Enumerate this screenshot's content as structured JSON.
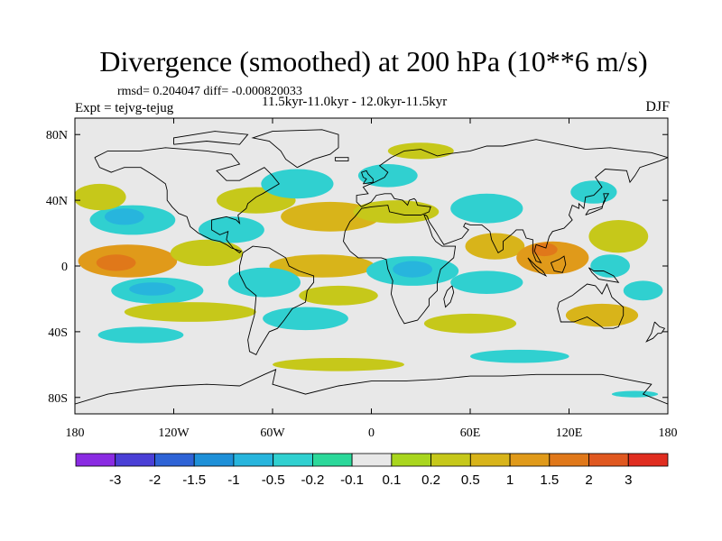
{
  "chart_data": {
    "type": "heatmap",
    "title": "Divergence (smoothed) at 200 hPa (10**6 m/s)",
    "stats_text": "rmsd= 0.204047 diff= -0.000820033",
    "subtitle_left": "Expt = tejvg-tejug",
    "subtitle_center": "11.5kyr-11.0kyr - 12.0kyr-11.5kyr",
    "subtitle_right": "DJF",
    "x_ticks": [
      {
        "value": -180,
        "label": "180"
      },
      {
        "value": -120,
        "label": "120W"
      },
      {
        "value": -60,
        "label": "60W"
      },
      {
        "value": 0,
        "label": "0"
      },
      {
        "value": 60,
        "label": "60E"
      },
      {
        "value": 120,
        "label": "120E"
      },
      {
        "value": 180,
        "label": "180"
      }
    ],
    "y_ticks": [
      {
        "value": 80,
        "label": "80N"
      },
      {
        "value": 40,
        "label": "40N"
      },
      {
        "value": 0,
        "label": "0"
      },
      {
        "value": -40,
        "label": "40S"
      },
      {
        "value": -80,
        "label": "80S"
      }
    ],
    "xlim": [
      -180,
      180
    ],
    "ylim": [
      -90,
      90
    ],
    "colorbar": {
      "colors": [
        "#8a2be2",
        "#4a3fd6",
        "#2e63d6",
        "#1e90d8",
        "#27b5dd",
        "#30d0d0",
        "#2bd89a",
        "#e8e8e8",
        "#a9d61e",
        "#c6c81a",
        "#d8b41a",
        "#e09a1a",
        "#e0781a",
        "#e05820",
        "#e02d20"
      ],
      "labels": [
        "-3",
        "-2",
        "-1.5",
        "-1",
        "-0.5",
        "-0.2",
        "-0.1",
        "0.1",
        "0.2",
        "0.5",
        "1",
        "1.5",
        "2",
        "3"
      ]
    },
    "regions": [
      {
        "name": "trop-pac-w-pos",
        "lon": -148,
        "lat": 3,
        "rx": 30,
        "ry": 10,
        "level": 11
      },
      {
        "name": "trop-pac-core",
        "lon": -155,
        "lat": 2,
        "rx": 12,
        "ry": 5,
        "level": 12
      },
      {
        "name": "npac-neg",
        "lon": -145,
        "lat": 28,
        "rx": 26,
        "ry": 9,
        "level": 5
      },
      {
        "name": "npac-neg-core",
        "lon": -150,
        "lat": 30,
        "rx": 12,
        "ry": 5,
        "level": 4
      },
      {
        "name": "npac-pos",
        "lon": -165,
        "lat": 42,
        "rx": 16,
        "ry": 8,
        "level": 9
      },
      {
        "name": "spac-neg",
        "lon": -130,
        "lat": -15,
        "rx": 28,
        "ry": 8,
        "level": 5
      },
      {
        "name": "spac-neg-core",
        "lon": -133,
        "lat": -14,
        "rx": 14,
        "ry": 4,
        "level": 4
      },
      {
        "name": "spac-pos",
        "lon": -110,
        "lat": -28,
        "rx": 40,
        "ry": 6,
        "level": 9
      },
      {
        "name": "sep-neg",
        "lon": -140,
        "lat": -42,
        "rx": 26,
        "ry": 5,
        "level": 5
      },
      {
        "name": "epac-pos",
        "lon": -100,
        "lat": 8,
        "rx": 22,
        "ry": 8,
        "level": 9
      },
      {
        "name": "na-neg",
        "lon": -85,
        "lat": 22,
        "rx": 20,
        "ry": 8,
        "level": 5
      },
      {
        "name": "na-pos",
        "lon": -70,
        "lat": 40,
        "rx": 24,
        "ry": 8,
        "level": 9
      },
      {
        "name": "natl-neg",
        "lon": -45,
        "lat": 50,
        "rx": 22,
        "ry": 9,
        "level": 5
      },
      {
        "name": "natl-pos",
        "lon": -25,
        "lat": 30,
        "rx": 30,
        "ry": 9,
        "level": 10
      },
      {
        "name": "trop-atl-pos",
        "lon": -30,
        "lat": 0,
        "rx": 32,
        "ry": 7,
        "level": 10
      },
      {
        "name": "sa-neg",
        "lon": -65,
        "lat": -10,
        "rx": 22,
        "ry": 9,
        "level": 5
      },
      {
        "name": "satl-neg",
        "lon": -40,
        "lat": -32,
        "rx": 26,
        "ry": 7,
        "level": 5
      },
      {
        "name": "satl-pos",
        "lon": -20,
        "lat": -18,
        "rx": 24,
        "ry": 6,
        "level": 9
      },
      {
        "name": "africa-neg",
        "lon": 25,
        "lat": -3,
        "rx": 28,
        "ry": 9,
        "level": 5
      },
      {
        "name": "africa-neg-core",
        "lon": 25,
        "lat": -2,
        "rx": 12,
        "ry": 5,
        "level": 4
      },
      {
        "name": "med-pos",
        "lon": 15,
        "lat": 33,
        "rx": 26,
        "ry": 7,
        "level": 9
      },
      {
        "name": "europe-neg",
        "lon": 10,
        "lat": 55,
        "rx": 18,
        "ry": 7,
        "level": 5
      },
      {
        "name": "asia-neg",
        "lon": 70,
        "lat": 35,
        "rx": 22,
        "ry": 9,
        "level": 5
      },
      {
        "name": "india-pos",
        "lon": 75,
        "lat": 12,
        "rx": 18,
        "ry": 8,
        "level": 10
      },
      {
        "name": "indo-pos",
        "lon": 110,
        "lat": 5,
        "rx": 22,
        "ry": 10,
        "level": 11
      },
      {
        "name": "indo-core",
        "lon": 105,
        "lat": 10,
        "rx": 8,
        "ry": 4,
        "level": 12
      },
      {
        "name": "io-neg",
        "lon": 70,
        "lat": -10,
        "rx": 22,
        "ry": 7,
        "level": 5
      },
      {
        "name": "sio-pos",
        "lon": 60,
        "lat": -35,
        "rx": 28,
        "ry": 6,
        "level": 9
      },
      {
        "name": "wpac-pos",
        "lon": 150,
        "lat": 18,
        "rx": 18,
        "ry": 10,
        "level": 9
      },
      {
        "name": "wpac-neg",
        "lon": 145,
        "lat": 0,
        "rx": 12,
        "ry": 7,
        "level": 5
      },
      {
        "name": "aus-pos",
        "lon": 140,
        "lat": -30,
        "rx": 22,
        "ry": 7,
        "level": 10
      },
      {
        "name": "swpac-neg",
        "lon": 165,
        "lat": -15,
        "rx": 12,
        "ry": 6,
        "level": 5
      },
      {
        "name": "nwpac-neg",
        "lon": 135,
        "lat": 45,
        "rx": 14,
        "ry": 7,
        "level": 5
      },
      {
        "name": "arctic-pos",
        "lon": 30,
        "lat": 70,
        "rx": 20,
        "ry": 5,
        "level": 9
      },
      {
        "name": "so-pos",
        "lon": -20,
        "lat": -60,
        "rx": 40,
        "ry": 4,
        "level": 9
      },
      {
        "name": "so-neg",
        "lon": 90,
        "lat": -55,
        "rx": 30,
        "ry": 4,
        "level": 5
      },
      {
        "name": "ant-neg",
        "lon": 160,
        "lat": -78,
        "rx": 14,
        "ry": 2,
        "level": 5
      }
    ]
  }
}
